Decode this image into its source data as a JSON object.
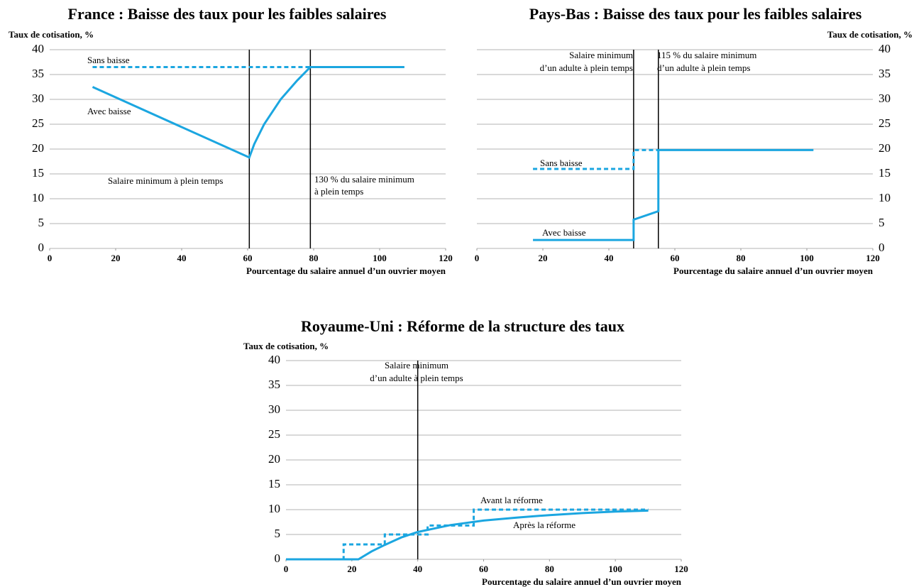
{
  "chart_data": [
    {
      "type": "line",
      "title": "France : Baisse des taux pour les faibles salaires",
      "ylabel": "Taux de cotisation, %",
      "xlabel": "Pourcentage du salaire annuel d’un ouvrier moyen",
      "xlim": [
        0,
        120
      ],
      "xticks": [
        0,
        20,
        40,
        60,
        80,
        100,
        120
      ],
      "ylim": [
        0,
        40
      ],
      "yticks": [
        0,
        5,
        10,
        15,
        20,
        25,
        30,
        35,
        40
      ],
      "grid": true,
      "yaxis_side": "left",
      "series": [
        {
          "name": "Sans baisse",
          "color": "#1ba6e0",
          "style": "dashed",
          "x": [
            13,
            79
          ],
          "values": [
            36.5,
            36.5
          ]
        },
        {
          "name": "Avec baisse",
          "color": "#1ba6e0",
          "style": "solid",
          "x": [
            13,
            60.5,
            62,
            65,
            70,
            75,
            79,
            107.5
          ],
          "values": [
            32.5,
            18.3,
            21,
            25,
            30,
            33.8,
            36.5,
            36.5
          ]
        }
      ],
      "vlines": [
        60.5,
        79
      ],
      "annotations": [
        "Salaire minimum à plein temps",
        "130 % du salaire minimum",
        "à plein temps"
      ]
    },
    {
      "type": "line",
      "title": "Pays-Bas : Baisse des taux pour les faibles salaires",
      "ylabel": "Taux de cotisation, %",
      "xlabel": "Pourcentage du salaire annuel d’un ouvrier moyen",
      "xlim": [
        0,
        120
      ],
      "xticks": [
        0,
        20,
        40,
        60,
        80,
        100,
        120
      ],
      "ylim": [
        0,
        40
      ],
      "yticks": [
        0,
        5,
        10,
        15,
        20,
        25,
        30,
        35,
        40
      ],
      "grid": true,
      "yaxis_side": "right",
      "series": [
        {
          "name": "Sans baisse",
          "color": "#1ba6e0",
          "style": "dashed",
          "x": [
            17,
            47.5,
            47.5,
            55
          ],
          "values": [
            16,
            16,
            19.8,
            19.8
          ]
        },
        {
          "name": "Avec baisse",
          "color": "#1ba6e0",
          "style": "solid",
          "x": [
            17,
            47.5,
            47.5,
            55,
            55,
            102
          ],
          "values": [
            1.7,
            1.7,
            5.8,
            7.5,
            19.8,
            19.8
          ]
        }
      ],
      "vlines": [
        47.5,
        55
      ],
      "annotations": [
        "Salaire minimum",
        "d’un adulte à plein temps",
        "115 % du salaire minimum",
        "d’un adulte à plein temps"
      ]
    },
    {
      "type": "line",
      "title": "Royaume-Uni : Réforme de la structure des taux",
      "ylabel": "Taux de cotisation, %",
      "xlabel": "Pourcentage du salaire annuel d’un ouvrier moyen",
      "xlim": [
        0,
        120
      ],
      "xticks": [
        0,
        20,
        40,
        60,
        80,
        100,
        120
      ],
      "ylim": [
        0,
        40
      ],
      "yticks": [
        0,
        5,
        10,
        15,
        20,
        25,
        30,
        35,
        40
      ],
      "grid": true,
      "yaxis_side": "left",
      "series": [
        {
          "name": "Avant la réforme",
          "color": "#1ba6e0",
          "style": "dashed",
          "x": [
            0,
            17.5,
            17.5,
            30,
            30,
            43,
            43,
            57,
            57,
            110
          ],
          "values": [
            0,
            0,
            3,
            3,
            5,
            5,
            6.8,
            6.8,
            10,
            10
          ]
        },
        {
          "name": "Après la réforme",
          "color": "#1ba6e0",
          "style": "solid",
          "x": [
            0,
            22,
            26,
            30,
            35,
            40,
            50,
            60,
            70,
            80,
            90,
            100,
            110
          ],
          "values": [
            0,
            0,
            1.6,
            2.9,
            4.4,
            5.5,
            6.9,
            7.8,
            8.4,
            8.9,
            9.3,
            9.6,
            9.8
          ]
        }
      ],
      "vlines": [
        40
      ],
      "annotations": [
        "Salaire minimum",
        "d’un adulte à plein temps"
      ]
    }
  ]
}
